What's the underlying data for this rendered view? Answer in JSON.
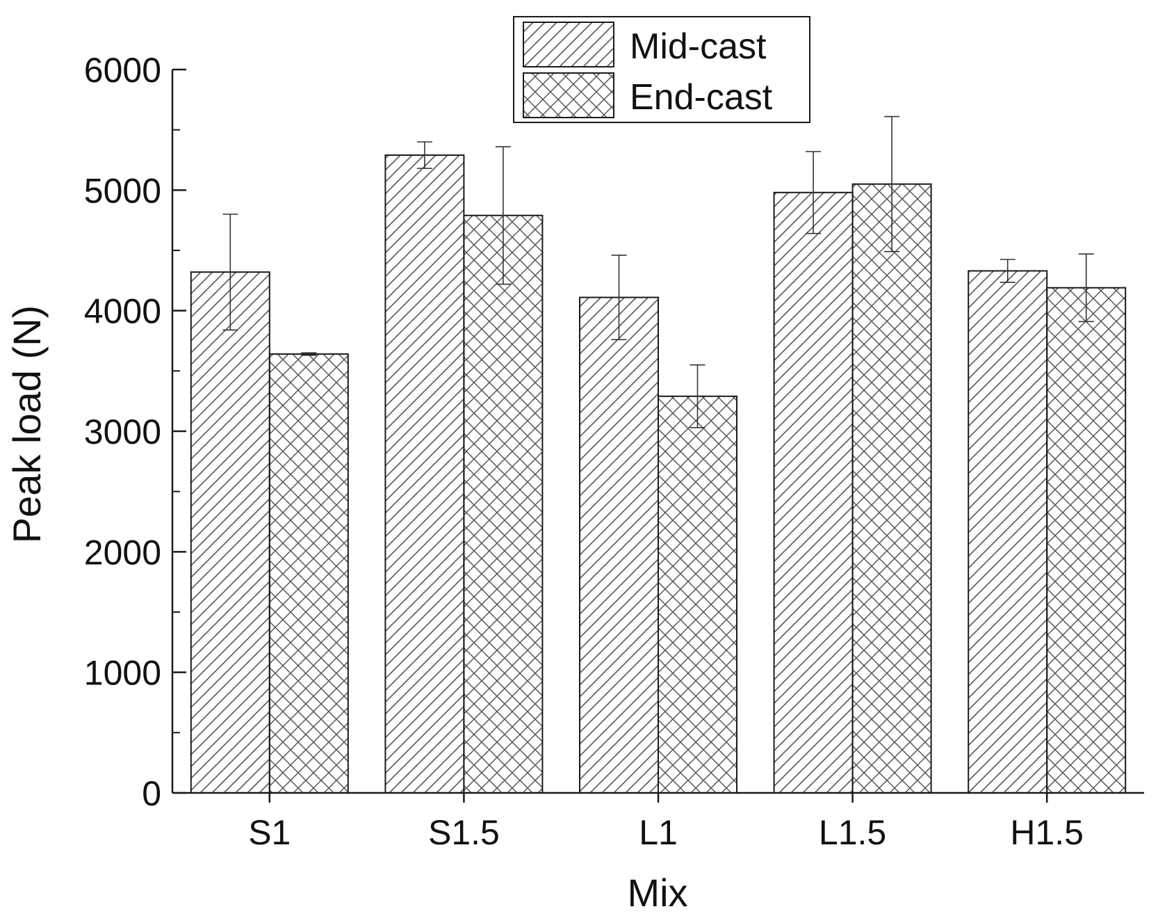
{
  "chart_data": {
    "type": "bar",
    "title": "",
    "xlabel": "Mix",
    "ylabel": "Peak load (N)",
    "categories": [
      "S1",
      "S1.5",
      "L1",
      "L1.5",
      "H1.5"
    ],
    "ylim": [
      0,
      6000
    ],
    "yticks": [
      0,
      1000,
      2000,
      3000,
      4000,
      5000,
      6000
    ],
    "legend_position": "top-center",
    "series": [
      {
        "name": "Mid-cast",
        "pattern": "diagonal-hatch",
        "values": [
          4320,
          5290,
          4110,
          4980,
          4330
        ],
        "errors": [
          480,
          110,
          350,
          340,
          95
        ]
      },
      {
        "name": "End-cast",
        "pattern": "cross-hatch",
        "values": [
          3640,
          4790,
          3290,
          5050,
          4190
        ],
        "errors": [
          10,
          570,
          260,
          560,
          280
        ]
      }
    ]
  },
  "colors": {
    "bar_stroke": "#1a1a1a",
    "hatch": "#4a4a4a",
    "axis": "#1a1a1a",
    "background": "#ffffff"
  }
}
